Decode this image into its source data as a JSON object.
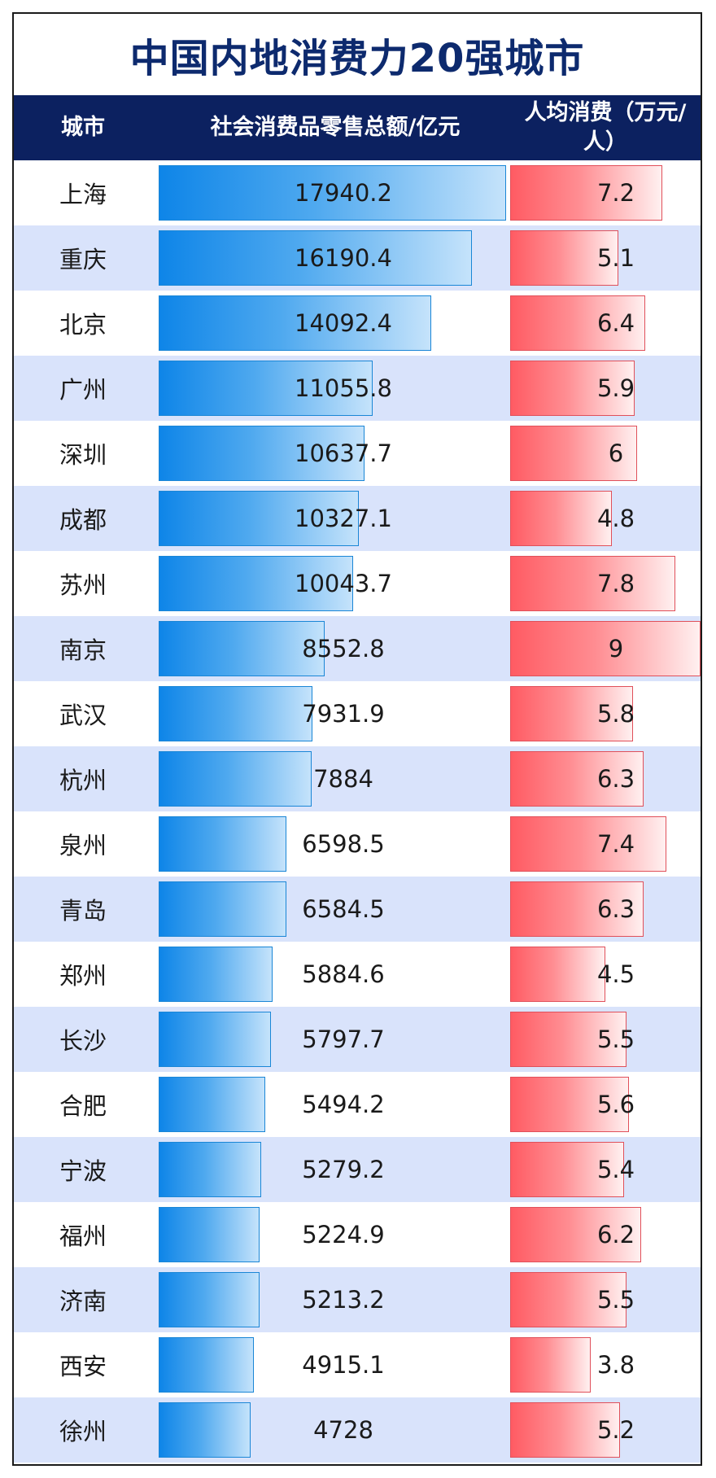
{
  "title": "中国内地消费力20强城市",
  "colors": {
    "title": "#0d2a6e",
    "header_bg": "#0c2160",
    "alt_row": "#d9e3fb",
    "blue_bar": "#0e85e8",
    "red_bar": "#ff5b63"
  },
  "headers": {
    "city": "城市",
    "retail": "社会消费品零售总额/亿元",
    "percap": "人均消费（万元/人）"
  },
  "chart_data": {
    "type": "table",
    "title": "中国内地消费力20强城市",
    "columns": [
      "城市",
      "社会消费品零售总额/亿元",
      "人均消费（万元/人）"
    ],
    "categories": [
      "上海",
      "重庆",
      "北京",
      "广州",
      "深圳",
      "成都",
      "苏州",
      "南京",
      "武汉",
      "杭州",
      "泉州",
      "青岛",
      "郑州",
      "长沙",
      "合肥",
      "宁波",
      "福州",
      "济南",
      "西安",
      "徐州"
    ],
    "series": [
      {
        "name": "社会消费品零售总额/亿元",
        "values": [
          17940.2,
          16190.4,
          14092.4,
          11055.8,
          10637.7,
          10327.1,
          10043.7,
          8552.8,
          7931.9,
          7884,
          6598.5,
          6584.5,
          5884.6,
          5797.7,
          5494.2,
          5279.2,
          5224.9,
          5213.2,
          4915.1,
          4728
        ]
      },
      {
        "name": "人均消费（万元/人）",
        "values": [
          7.2,
          5.1,
          6.4,
          5.9,
          6,
          4.8,
          7.8,
          9,
          5.8,
          6.3,
          7.4,
          6.3,
          4.5,
          5.5,
          5.6,
          5.4,
          6.2,
          5.5,
          3.8,
          5.2
        ]
      }
    ]
  }
}
